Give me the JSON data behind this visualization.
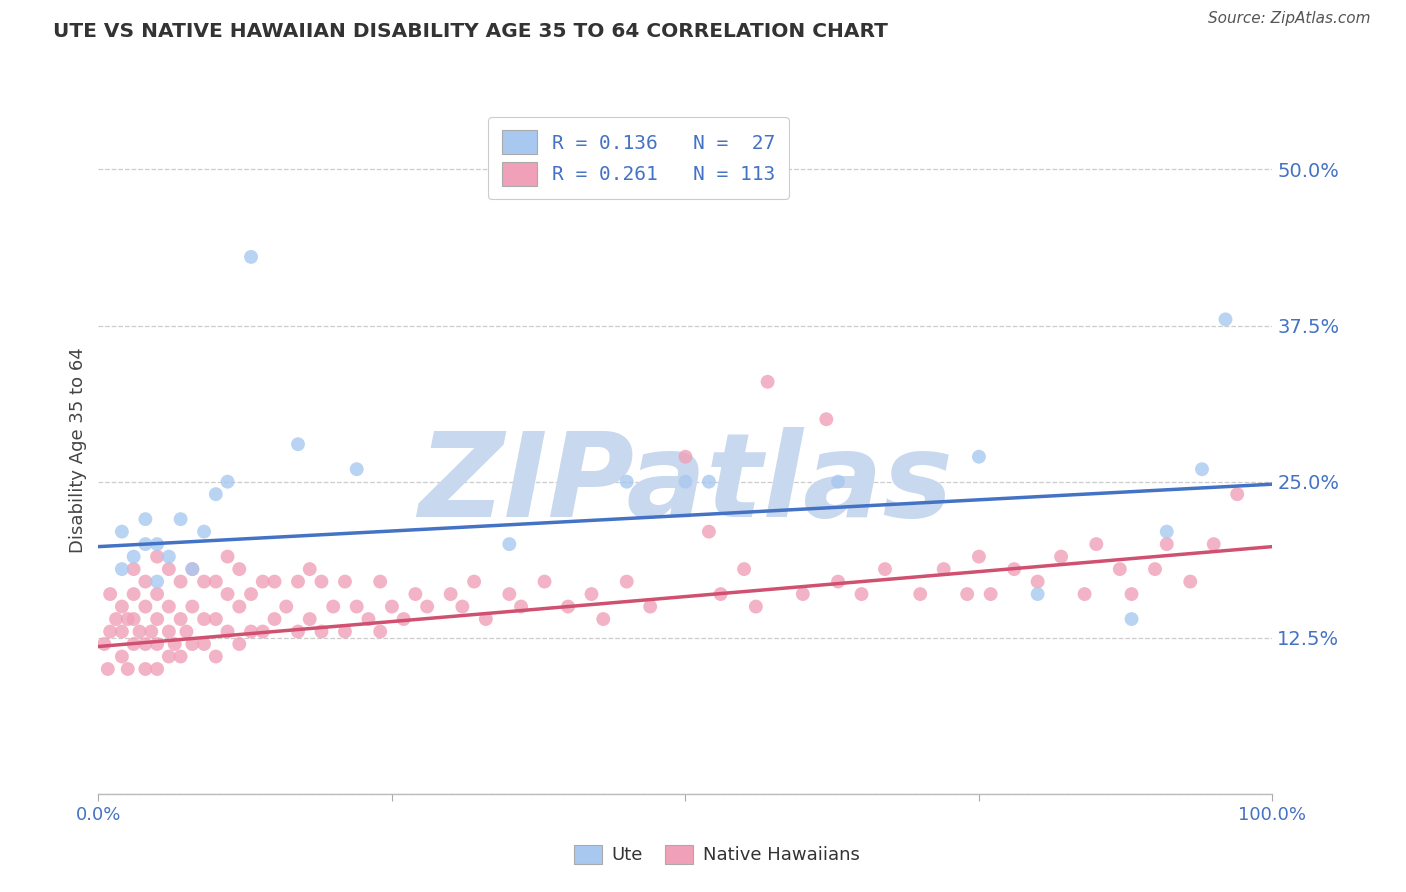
{
  "title": "UTE VS NATIVE HAWAIIAN DISABILITY AGE 35 TO 64 CORRELATION CHART",
  "source": "Source: ZipAtlas.com",
  "ylabel": "Disability Age 35 to 64",
  "blue_color": "#a8c8f0",
  "pink_color": "#f0a0b8",
  "blue_line_color": "#4472c4",
  "pink_line_color": "#d05070",
  "watermark_color": "#c8d8ee",
  "background_color": "#ffffff",
  "legend_text_color": "#4472c4",
  "tick_color": "#4472c4",
  "title_color": "#333333",
  "source_color": "#555555",
  "R_ute": 0.136,
  "N_ute": 27,
  "R_nh": 0.261,
  "N_nh": 113,
  "blue_line_x0": 0.0,
  "blue_line_y0": 0.198,
  "blue_line_x1": 1.0,
  "blue_line_y1": 0.248,
  "pink_line_x0": 0.0,
  "pink_line_y0": 0.118,
  "pink_line_x1": 1.0,
  "pink_line_y1": 0.198,
  "ute_x": [
    0.02,
    0.02,
    0.03,
    0.04,
    0.04,
    0.05,
    0.05,
    0.06,
    0.07,
    0.08,
    0.09,
    0.1,
    0.11,
    0.13,
    0.17,
    0.22,
    0.45,
    0.52,
    0.75,
    0.8,
    0.88,
    0.91,
    0.94,
    0.96,
    0.35,
    0.5,
    0.63
  ],
  "ute_y": [
    0.18,
    0.21,
    0.19,
    0.2,
    0.22,
    0.2,
    0.17,
    0.19,
    0.22,
    0.18,
    0.21,
    0.24,
    0.25,
    0.43,
    0.28,
    0.26,
    0.25,
    0.25,
    0.27,
    0.16,
    0.14,
    0.21,
    0.26,
    0.38,
    0.2,
    0.25,
    0.25
  ],
  "nh_x": [
    0.005,
    0.008,
    0.01,
    0.01,
    0.015,
    0.02,
    0.02,
    0.02,
    0.025,
    0.025,
    0.03,
    0.03,
    0.03,
    0.03,
    0.035,
    0.04,
    0.04,
    0.04,
    0.04,
    0.045,
    0.05,
    0.05,
    0.05,
    0.05,
    0.05,
    0.06,
    0.06,
    0.06,
    0.06,
    0.065,
    0.07,
    0.07,
    0.07,
    0.075,
    0.08,
    0.08,
    0.08,
    0.09,
    0.09,
    0.09,
    0.1,
    0.1,
    0.1,
    0.11,
    0.11,
    0.11,
    0.12,
    0.12,
    0.12,
    0.13,
    0.13,
    0.14,
    0.14,
    0.15,
    0.15,
    0.16,
    0.17,
    0.17,
    0.18,
    0.18,
    0.19,
    0.19,
    0.2,
    0.21,
    0.21,
    0.22,
    0.23,
    0.24,
    0.24,
    0.25,
    0.26,
    0.27,
    0.28,
    0.3,
    0.31,
    0.32,
    0.33,
    0.35,
    0.36,
    0.38,
    0.4,
    0.42,
    0.43,
    0.45,
    0.47,
    0.5,
    0.52,
    0.53,
    0.55,
    0.56,
    0.57,
    0.6,
    0.62,
    0.63,
    0.65,
    0.67,
    0.7,
    0.72,
    0.74,
    0.75,
    0.76,
    0.78,
    0.8,
    0.82,
    0.84,
    0.85,
    0.87,
    0.88,
    0.9,
    0.91,
    0.93,
    0.95,
    0.97
  ],
  "nh_y": [
    0.12,
    0.1,
    0.13,
    0.16,
    0.14,
    0.11,
    0.13,
    0.15,
    0.1,
    0.14,
    0.12,
    0.14,
    0.16,
    0.18,
    0.13,
    0.1,
    0.12,
    0.15,
    0.17,
    0.13,
    0.1,
    0.12,
    0.14,
    0.16,
    0.19,
    0.11,
    0.13,
    0.15,
    0.18,
    0.12,
    0.11,
    0.14,
    0.17,
    0.13,
    0.12,
    0.15,
    0.18,
    0.12,
    0.14,
    0.17,
    0.11,
    0.14,
    0.17,
    0.13,
    0.16,
    0.19,
    0.12,
    0.15,
    0.18,
    0.13,
    0.16,
    0.13,
    0.17,
    0.14,
    0.17,
    0.15,
    0.13,
    0.17,
    0.14,
    0.18,
    0.13,
    0.17,
    0.15,
    0.13,
    0.17,
    0.15,
    0.14,
    0.13,
    0.17,
    0.15,
    0.14,
    0.16,
    0.15,
    0.16,
    0.15,
    0.17,
    0.14,
    0.16,
    0.15,
    0.17,
    0.15,
    0.16,
    0.14,
    0.17,
    0.15,
    0.27,
    0.21,
    0.16,
    0.18,
    0.15,
    0.33,
    0.16,
    0.3,
    0.17,
    0.16,
    0.18,
    0.16,
    0.18,
    0.16,
    0.19,
    0.16,
    0.18,
    0.17,
    0.19,
    0.16,
    0.2,
    0.18,
    0.16,
    0.18,
    0.2,
    0.17,
    0.2,
    0.24
  ],
  "xlim": [
    0.0,
    1.0
  ],
  "ylim": [
    0.0,
    0.55
  ],
  "yticks": [
    0.0,
    0.125,
    0.25,
    0.375,
    0.5
  ],
  "ytick_labels": [
    "",
    "12.5%",
    "25.0%",
    "37.5%",
    "50.0%"
  ],
  "xticks": [
    0.0,
    0.25,
    0.5,
    0.75,
    1.0
  ],
  "xtick_labels_show": [
    "0.0%",
    "",
    "",
    "",
    "100.0%"
  ]
}
